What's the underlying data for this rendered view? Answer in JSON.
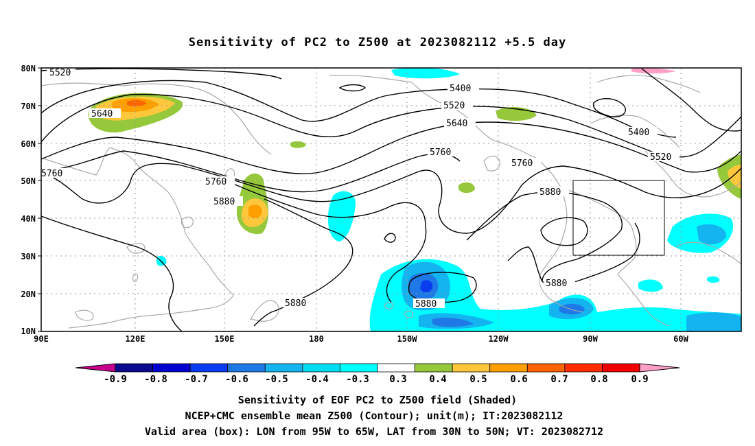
{
  "title": "Sensitivity of PC2 to Z500 at 2023082112 +5.5 day",
  "lat_labels": [
    "80N",
    "70N",
    "60N",
    "50N",
    "40N",
    "30N",
    "20N",
    "10N"
  ],
  "lon_labels": [
    "90E",
    "120E",
    "150E",
    "180",
    "150W",
    "120W",
    "90W",
    "60W"
  ],
  "contour_labels": [
    "5520",
    "5400",
    "5520",
    "5640",
    "5640",
    "5400",
    "5520",
    "5760",
    "5760",
    "5760",
    "5880",
    "5760",
    "5880",
    "5880",
    "5880",
    "5880"
  ],
  "colorbar": {
    "tick_labels": [
      "-0.9",
      "-0.8",
      "-0.7",
      "-0.6",
      "-0.5",
      "-0.4",
      "-0.3",
      "0.3",
      "0.4",
      "0.5",
      "0.6",
      "0.7",
      "0.8",
      "0.9"
    ],
    "colors": [
      "#c8008c",
      "#0a0a8c",
      "#0000d0",
      "#0a3cf0",
      "#1e78e6",
      "#14b4f0",
      "#00dcf0",
      "#00ffff",
      "#ffffff",
      "#96c83c",
      "#ffc83c",
      "#ffa000",
      "#ff6400",
      "#ff2d00",
      "#f00000",
      "#ff9ec8"
    ]
  },
  "box": {
    "lon_west": -95,
    "lon_east": -65,
    "lat_south": 30,
    "lat_north": 50
  },
  "caption": {
    "line1": "Sensitivity of EOF PC2 to Z500 field (Shaded)",
    "line2": "NCEP+CMC ensemble mean Z500 (Contour); unit(m); IT:2023082112",
    "line3": "Valid area (box): LON from 95W to 65W, LAT from 30N to 50N; VT: 2023082712"
  }
}
